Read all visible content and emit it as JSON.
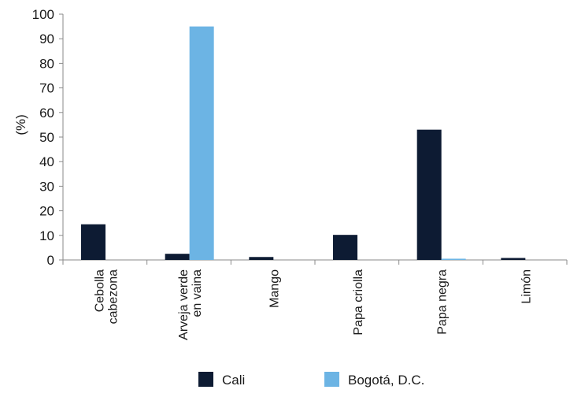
{
  "chart_data": {
    "type": "bar",
    "ylabel": "(%)",
    "ylim": [
      0,
      100
    ],
    "yticks": [
      "0",
      "10",
      "20",
      "30",
      "40",
      "50",
      "60",
      "70",
      "80",
      "90",
      "100"
    ],
    "categories": [
      [
        "Cebolla",
        "cabezona"
      ],
      [
        "Arveja verde",
        "en vaina"
      ],
      [
        "Mango"
      ],
      [
        "Papa criolla"
      ],
      [
        "Papa negra"
      ],
      [
        "Limón"
      ]
    ],
    "series": [
      {
        "name": "Cali",
        "color": "#0d1b33",
        "values": [
          14.5,
          2.5,
          1.2,
          10.2,
          53.0,
          0.8
        ]
      },
      {
        "name": "Bogotá, D.C.",
        "color": "#6cb4e4",
        "values": [
          0.0,
          95.0,
          0.0,
          0.0,
          0.5,
          0.0
        ]
      }
    ],
    "legend_position": "bottom",
    "grid": false
  }
}
